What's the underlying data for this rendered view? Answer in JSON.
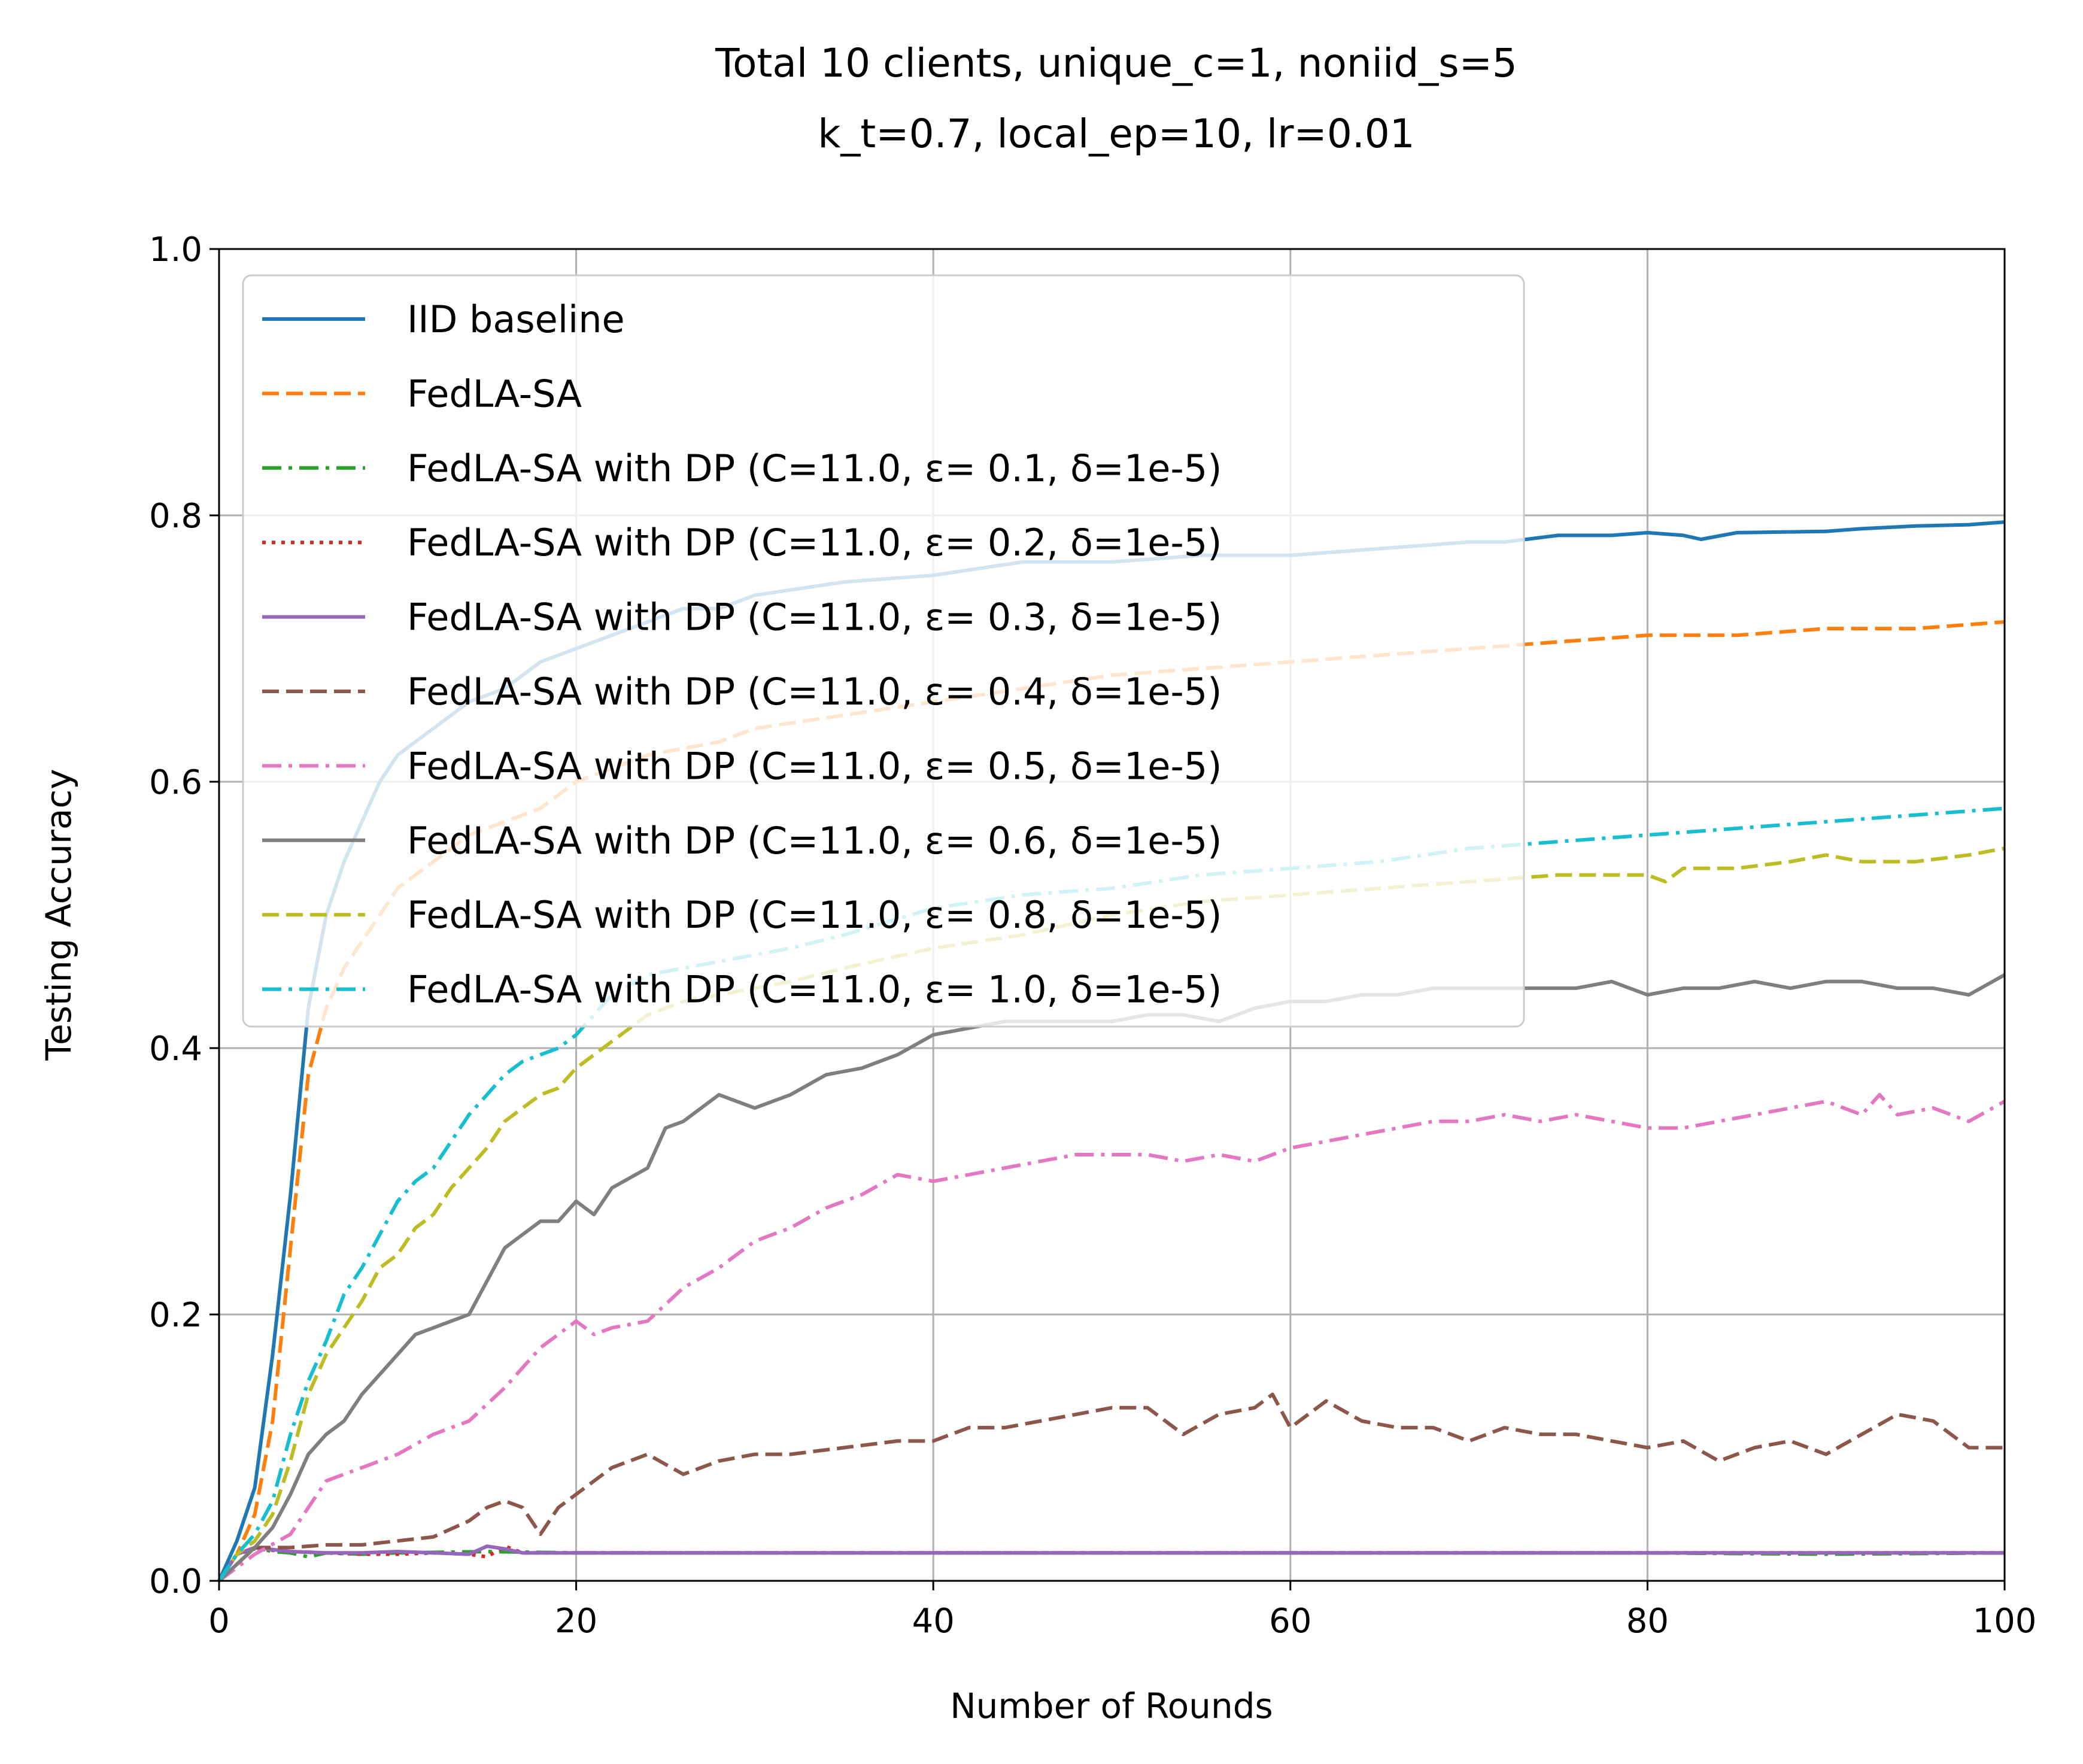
{
  "chart_data": {
    "type": "line",
    "title_lines": [
      "Total 10 clients, unique_c=1, noniid_s=5",
      "k_t=0.7, local_ep=10, lr=0.01"
    ],
    "xlabel": "Number of Rounds",
    "ylabel": "Testing Accuracy",
    "xlim": [
      0,
      100
    ],
    "ylim": [
      0.0,
      1.0
    ],
    "xticks": [
      "0",
      "20",
      "40",
      "60",
      "80",
      "100"
    ],
    "yticks": [
      "0.0",
      "0.2",
      "0.4",
      "0.6",
      "0.8",
      "1.0"
    ],
    "grid": true,
    "legend_position": "upper-left",
    "series": [
      {
        "name": "IID baseline",
        "color": "#1f77b4",
        "style": "solid",
        "x": [
          0,
          1,
          2,
          3,
          4,
          5,
          6,
          7,
          8,
          9,
          10,
          12,
          14,
          16,
          18,
          20,
          22,
          24,
          26,
          28,
          30,
          35,
          40,
          45,
          50,
          55,
          60,
          65,
          70,
          72,
          75,
          78,
          80,
          82,
          83,
          85,
          90,
          92,
          95,
          98,
          100
        ],
        "y": [
          0.0,
          0.03,
          0.07,
          0.17,
          0.29,
          0.43,
          0.5,
          0.54,
          0.57,
          0.6,
          0.62,
          0.64,
          0.66,
          0.67,
          0.69,
          0.7,
          0.71,
          0.72,
          0.73,
          0.73,
          0.74,
          0.75,
          0.755,
          0.765,
          0.765,
          0.77,
          0.77,
          0.775,
          0.78,
          0.78,
          0.785,
          0.785,
          0.787,
          0.785,
          0.782,
          0.787,
          0.788,
          0.79,
          0.792,
          0.793,
          0.795
        ]
      },
      {
        "name": "FedLA-SA",
        "color": "#ff7f0e",
        "style": "dashed",
        "x": [
          0,
          1,
          2,
          3,
          4,
          5,
          6,
          7,
          8,
          9,
          10,
          12,
          14,
          16,
          18,
          20,
          22,
          24,
          26,
          28,
          30,
          35,
          40,
          45,
          50,
          55,
          60,
          65,
          70,
          75,
          80,
          85,
          90,
          95,
          100
        ],
        "y": [
          0.0,
          0.02,
          0.05,
          0.12,
          0.25,
          0.38,
          0.43,
          0.46,
          0.48,
          0.5,
          0.52,
          0.54,
          0.56,
          0.57,
          0.58,
          0.6,
          0.61,
          0.62,
          0.625,
          0.63,
          0.64,
          0.65,
          0.66,
          0.67,
          0.68,
          0.685,
          0.69,
          0.695,
          0.7,
          0.705,
          0.71,
          0.71,
          0.715,
          0.715,
          0.72
        ]
      },
      {
        "name": "FedLA-SA with DP (C=11.0, ε= 0.1, δ=1e-5)",
        "color": "#2ca02c",
        "style": "dashdot",
        "x": [
          0,
          1,
          2,
          3,
          4,
          5,
          6,
          8,
          10,
          15,
          20,
          40,
          60,
          80,
          90,
          100
        ],
        "y": [
          0.0,
          0.02,
          0.025,
          0.022,
          0.021,
          0.018,
          0.021,
          0.02,
          0.021,
          0.022,
          0.021,
          0.021,
          0.021,
          0.021,
          0.02,
          0.021
        ]
      },
      {
        "name": "FedLA-SA with DP (C=11.0, ε= 0.2, δ=1e-5)",
        "color": "#d62728",
        "style": "dotted",
        "x": [
          0,
          1,
          2,
          4,
          6,
          8,
          10,
          12,
          14,
          15,
          16,
          17,
          18,
          20,
          40,
          60,
          80,
          100
        ],
        "y": [
          0.0,
          0.02,
          0.024,
          0.022,
          0.021,
          0.02,
          0.02,
          0.021,
          0.02,
          0.018,
          0.026,
          0.021,
          0.021,
          0.021,
          0.021,
          0.021,
          0.021,
          0.021
        ]
      },
      {
        "name": "FedLA-SA with DP (C=11.0, ε= 0.3, δ=1e-5)",
        "color": "#9467bd",
        "style": "solid",
        "x": [
          0,
          1,
          2,
          4,
          6,
          8,
          10,
          12,
          14,
          15,
          16,
          17,
          18,
          20,
          40,
          60,
          80,
          100
        ],
        "y": [
          0.0,
          0.02,
          0.025,
          0.022,
          0.021,
          0.021,
          0.022,
          0.021,
          0.02,
          0.026,
          0.024,
          0.021,
          0.021,
          0.021,
          0.021,
          0.021,
          0.021,
          0.021
        ]
      },
      {
        "name": "FedLA-SA with DP (C=11.0, ε= 0.4, δ=1e-5)",
        "color": "#8c564b",
        "style": "dashed",
        "x": [
          0,
          2,
          4,
          6,
          8,
          10,
          12,
          14,
          15,
          16,
          17,
          18,
          19,
          20,
          22,
          24,
          26,
          28,
          30,
          32,
          35,
          38,
          40,
          42,
          44,
          46,
          48,
          50,
          52,
          54,
          56,
          58,
          59,
          60,
          62,
          64,
          66,
          68,
          70,
          72,
          74,
          76,
          78,
          80,
          82,
          84,
          86,
          88,
          90,
          92,
          94,
          96,
          98,
          100
        ],
        "y": [
          0.0,
          0.025,
          0.025,
          0.027,
          0.027,
          0.03,
          0.033,
          0.045,
          0.055,
          0.06,
          0.055,
          0.035,
          0.055,
          0.065,
          0.085,
          0.095,
          0.08,
          0.09,
          0.095,
          0.095,
          0.1,
          0.105,
          0.105,
          0.115,
          0.115,
          0.12,
          0.125,
          0.13,
          0.13,
          0.11,
          0.125,
          0.13,
          0.14,
          0.115,
          0.135,
          0.12,
          0.115,
          0.115,
          0.105,
          0.115,
          0.11,
          0.11,
          0.105,
          0.1,
          0.105,
          0.09,
          0.1,
          0.105,
          0.095,
          0.11,
          0.125,
          0.12,
          0.1,
          0.1
        ]
      },
      {
        "name": "FedLA-SA with DP (C=11.0, ε= 0.5, δ=1e-5)",
        "color": "#e377c2",
        "style": "dashdot",
        "x": [
          0,
          2,
          4,
          5,
          6,
          8,
          10,
          12,
          14,
          16,
          18,
          20,
          21,
          22,
          24,
          26,
          28,
          30,
          32,
          34,
          36,
          38,
          40,
          42,
          44,
          46,
          48,
          50,
          52,
          54,
          56,
          58,
          60,
          62,
          64,
          66,
          68,
          70,
          72,
          74,
          76,
          78,
          80,
          82,
          84,
          86,
          88,
          90,
          92,
          93,
          94,
          96,
          98,
          100
        ],
        "y": [
          0.0,
          0.02,
          0.035,
          0.055,
          0.075,
          0.085,
          0.095,
          0.11,
          0.12,
          0.145,
          0.175,
          0.195,
          0.185,
          0.19,
          0.195,
          0.22,
          0.235,
          0.255,
          0.265,
          0.28,
          0.29,
          0.305,
          0.3,
          0.305,
          0.31,
          0.315,
          0.32,
          0.32,
          0.32,
          0.315,
          0.32,
          0.315,
          0.325,
          0.33,
          0.335,
          0.34,
          0.345,
          0.345,
          0.35,
          0.345,
          0.35,
          0.345,
          0.34,
          0.34,
          0.345,
          0.35,
          0.355,
          0.36,
          0.35,
          0.365,
          0.35,
          0.355,
          0.345,
          0.36
        ]
      },
      {
        "name": "FedLA-SA with DP (C=11.0, ε= 0.6, δ=1e-5)",
        "color": "#7f7f7f",
        "style": "solid",
        "x": [
          0,
          2,
          3,
          4,
          5,
          6,
          7,
          8,
          9,
          10,
          11,
          12,
          13,
          14,
          15,
          16,
          17,
          18,
          19,
          20,
          21,
          22,
          24,
          25,
          26,
          28,
          29,
          30,
          32,
          34,
          36,
          38,
          40,
          42,
          44,
          46,
          48,
          50,
          52,
          54,
          56,
          58,
          60,
          62,
          64,
          66,
          68,
          70,
          72,
          74,
          76,
          78,
          80,
          82,
          84,
          86,
          88,
          90,
          92,
          94,
          96,
          98,
          100
        ],
        "y": [
          0.0,
          0.025,
          0.04,
          0.065,
          0.095,
          0.11,
          0.12,
          0.14,
          0.155,
          0.17,
          0.185,
          0.19,
          0.195,
          0.2,
          0.225,
          0.25,
          0.26,
          0.27,
          0.27,
          0.285,
          0.275,
          0.295,
          0.31,
          0.34,
          0.345,
          0.365,
          0.36,
          0.355,
          0.365,
          0.38,
          0.385,
          0.395,
          0.41,
          0.415,
          0.42,
          0.42,
          0.42,
          0.42,
          0.425,
          0.425,
          0.42,
          0.43,
          0.435,
          0.435,
          0.44,
          0.44,
          0.445,
          0.445,
          0.445,
          0.445,
          0.445,
          0.45,
          0.44,
          0.445,
          0.445,
          0.45,
          0.445,
          0.45,
          0.45,
          0.445,
          0.445,
          0.44,
          0.455
        ]
      },
      {
        "name": "FedLA-SA with DP (C=11.0, ε= 0.8, δ=1e-5)",
        "color": "#bcbd22",
        "style": "dashed",
        "x": [
          0,
          1,
          2,
          3,
          4,
          5,
          6,
          7,
          8,
          9,
          10,
          11,
          12,
          13,
          14,
          15,
          16,
          17,
          18,
          19,
          20,
          22,
          24,
          26,
          28,
          30,
          32,
          35,
          40,
          45,
          50,
          55,
          60,
          65,
          70,
          75,
          80,
          81,
          82,
          85,
          88,
          90,
          92,
          95,
          98,
          100
        ],
        "y": [
          0.0,
          0.02,
          0.03,
          0.05,
          0.09,
          0.14,
          0.17,
          0.19,
          0.21,
          0.235,
          0.245,
          0.265,
          0.275,
          0.295,
          0.31,
          0.325,
          0.345,
          0.355,
          0.365,
          0.37,
          0.385,
          0.405,
          0.425,
          0.435,
          0.44,
          0.445,
          0.45,
          0.46,
          0.475,
          0.485,
          0.5,
          0.51,
          0.515,
          0.52,
          0.525,
          0.53,
          0.53,
          0.525,
          0.535,
          0.535,
          0.54,
          0.545,
          0.54,
          0.54,
          0.545,
          0.55
        ]
      },
      {
        "name": "FedLA-SA with DP (C=11.0, ε= 1.0, δ=1e-5)",
        "color": "#17becf",
        "style": "dashdot",
        "x": [
          0,
          1,
          2,
          3,
          4,
          5,
          6,
          7,
          8,
          9,
          10,
          11,
          12,
          13,
          14,
          15,
          16,
          17,
          18,
          19,
          20,
          22,
          24,
          26,
          28,
          30,
          32,
          35,
          40,
          45,
          50,
          55,
          60,
          65,
          70,
          75,
          80,
          85,
          90,
          95,
          100
        ],
        "y": [
          0.0,
          0.02,
          0.035,
          0.06,
          0.11,
          0.15,
          0.18,
          0.215,
          0.235,
          0.26,
          0.285,
          0.3,
          0.31,
          0.33,
          0.35,
          0.365,
          0.38,
          0.39,
          0.395,
          0.4,
          0.41,
          0.44,
          0.455,
          0.46,
          0.465,
          0.47,
          0.475,
          0.485,
          0.505,
          0.515,
          0.52,
          0.53,
          0.535,
          0.54,
          0.55,
          0.555,
          0.56,
          0.565,
          0.57,
          0.575,
          0.58
        ]
      }
    ]
  }
}
